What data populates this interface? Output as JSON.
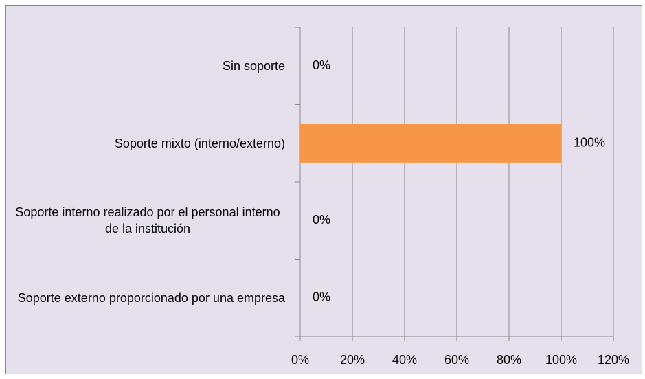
{
  "chart_data": {
    "type": "barh",
    "categories": [
      "Sin soporte",
      "Soporte mixto (interno/externo)",
      "Soporte interno realizado por el personal interno de la institución",
      "Soporte externo proporcionado por una empresa"
    ],
    "values": [
      0,
      100,
      0,
      0
    ],
    "value_labels": [
      "0%",
      "100%",
      "0%",
      "0%"
    ],
    "color": "#f79646",
    "xlim": [
      0,
      120
    ],
    "xticks": [
      {
        "value": 0,
        "label": "0%"
      },
      {
        "value": 20,
        "label": "20%"
      },
      {
        "value": 40,
        "label": "40%"
      },
      {
        "value": 60,
        "label": "60%"
      },
      {
        "value": 80,
        "label": "80%"
      },
      {
        "value": 100,
        "label": "100%"
      },
      {
        "value": 120,
        "label": "120%"
      }
    ],
    "grid": true
  }
}
